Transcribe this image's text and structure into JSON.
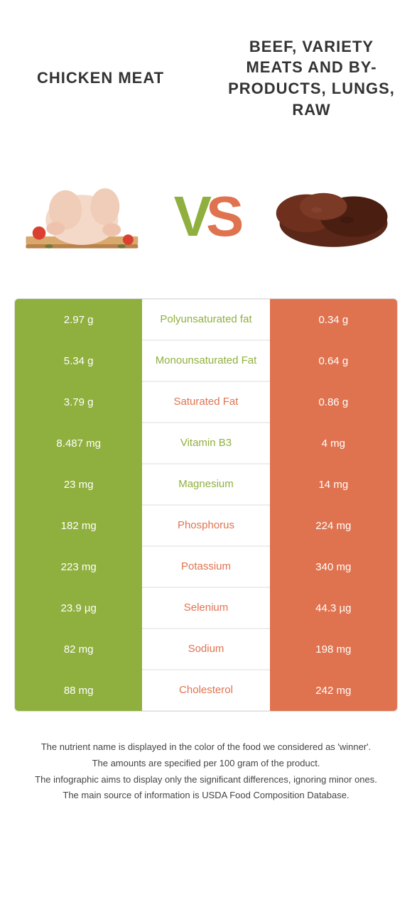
{
  "colors": {
    "green": "#8fb03e",
    "orange": "#e0734f",
    "cell_green_bg": "#8fb03e",
    "cell_orange_bg": "#e0734f",
    "label_green": "#8fb03e",
    "label_orange": "#e0734f"
  },
  "titles": {
    "left": "CHICKEN MEAT",
    "right": "BEEF, VARIETY MEATS AND BY-PRODUCTS, LUNGS, RAW"
  },
  "vs": {
    "v": "V",
    "s": "S"
  },
  "rows": [
    {
      "left": "2.97 g",
      "label": "Polyunsaturated fat",
      "right": "0.34 g",
      "winner": "left"
    },
    {
      "left": "5.34 g",
      "label": "Monounsaturated Fat",
      "right": "0.64 g",
      "winner": "left"
    },
    {
      "left": "3.79 g",
      "label": "Saturated Fat",
      "right": "0.86 g",
      "winner": "right"
    },
    {
      "left": "8.487 mg",
      "label": "Vitamin B3",
      "right": "4 mg",
      "winner": "left"
    },
    {
      "left": "23 mg",
      "label": "Magnesium",
      "right": "14 mg",
      "winner": "left"
    },
    {
      "left": "182 mg",
      "label": "Phosphorus",
      "right": "224 mg",
      "winner": "right"
    },
    {
      "left": "223 mg",
      "label": "Potassium",
      "right": "340 mg",
      "winner": "right"
    },
    {
      "left": "23.9 µg",
      "label": "Selenium",
      "right": "44.3 µg",
      "winner": "right"
    },
    {
      "left": "82 mg",
      "label": "Sodium",
      "right": "198 mg",
      "winner": "right"
    },
    {
      "left": "88 mg",
      "label": "Cholesterol",
      "right": "242 mg",
      "winner": "right"
    }
  ],
  "footer": {
    "line1": "The nutrient name is displayed in the color of the food we considered as 'winner'.",
    "line2": "The amounts are specified per 100 gram of the product.",
    "line3": "The infographic aims to display only the significant differences, ignoring minor ones.",
    "line4": "The main source of information is USDA Food Composition Database."
  }
}
